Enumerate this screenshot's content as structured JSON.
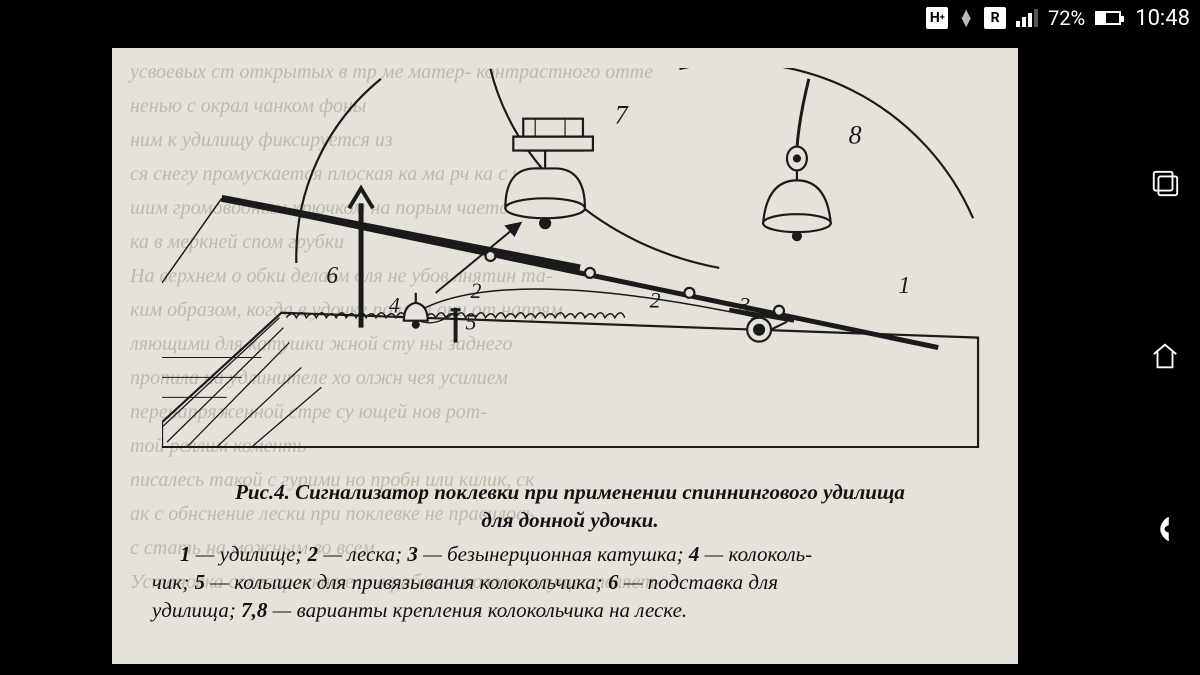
{
  "status": {
    "network_badge1": "H",
    "network_badge1_sup": "+",
    "network_badge2": "R",
    "battery_pct": "72%",
    "clock": "10:48"
  },
  "nav": {
    "recent": "recent-apps",
    "home": "home",
    "back": "back"
  },
  "page": {
    "bleed_lines": [
      "усвоевых ст   открытых в тр ме матер-  контрастного отте",
      "ненью с окрал  чанком фоны",
      "ним к удилищу фиксируется из",
      "ся снегу промускается плоская ка           ма рч   ка с неболь-",
      "шим громоводным крючком на               порым       чается лес-",
      "ка в меркней  спом грубки",
      "   На верхнем о       обки делаем       для не    убов   лнятин та-",
      "ким образом, когда в удочке по     ити они от       напрям",
      "ляющими для катушки            жной сту      ны заднего",
      "пропила на удлинителе  хо           олжн      чея   усилием",
      "перенапряженной стре           су       ющей      нов рот-",
      "той реллим   коменть",
      "писалесь такой с     гурими но       пробн или   килик, ск",
      "ак          с  обнснение лески при поклевке    не   правилось",
      "с    стать  на  можным во всем",
      "   Установка сслевороскатели в рабочее поло      не осуществляет-"
    ],
    "diagram": {
      "labels": {
        "l1": "1",
        "l2": "2",
        "l3": "3",
        "l4": "4",
        "l5": "5",
        "l6": "6",
        "l7": "7",
        "l8": "8"
      },
      "stroke": "#1a1a1a",
      "fill_light": "#e4e2da"
    },
    "caption_title_a": "Рис.4. Сигнализатор поклевки при применении спиннингового удилища",
    "caption_title_b": "для донной удочки.",
    "legend_1": "1",
    "legend_1t": " — удилище; ",
    "legend_2": "2",
    "legend_2t": " — леска; ",
    "legend_3": "3",
    "legend_3t": " — безынерционная катушка; ",
    "legend_4": "4",
    "legend_4t": " — колоколь-",
    "legend_4c": "чик; ",
    "legend_5": "5",
    "legend_5t": " — колышек для привязывания колокольчика; ",
    "legend_6": "6",
    "legend_6t": " — подставка для",
    "legend_6c": "удилища; ",
    "legend_78": "7,8",
    "legend_78t": " — варианты крепления колокольчика на леске."
  }
}
